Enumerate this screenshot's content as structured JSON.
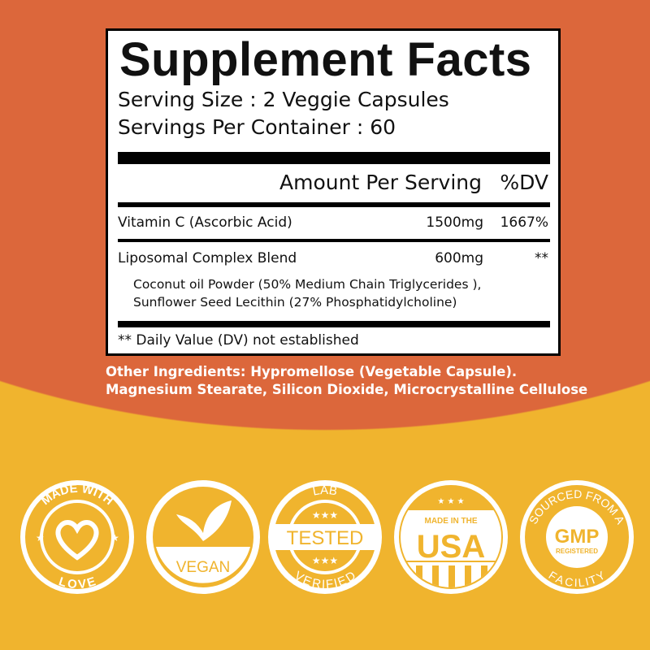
{
  "label": {
    "title": "Supplement Facts",
    "serving_size": "Serving Size : 2 Veggie Capsules",
    "servings_per_container": "Servings Per Container : 60",
    "header_amount": "Amount Per Serving",
    "header_dv": "%DV",
    "rows": [
      {
        "name": "Vitamin C (Ascorbic Acid)",
        "amount": "1500mg",
        "dv": "1667%"
      },
      {
        "name": "Liposomal Complex Blend",
        "amount": "600mg",
        "dv": "**"
      }
    ],
    "blend_line1": "Coconut oil Powder (50% Medium Chain Triglycerides ),",
    "blend_line2": "Sunflower Seed Lecithin (27% Phosphatidylcholine)",
    "footnote": "** Daily Value (DV) not established"
  },
  "other_ingredients": {
    "line1": "Other Ingredients: Hypromellose (Vegetable Capsule).",
    "line2": "Magnesium Stearate, Silicon Dioxide, Microcrystalline Cellulose"
  },
  "badges": [
    {
      "icon": "heart-icon",
      "top": "MADE WITH",
      "bottom": "LOVE"
    },
    {
      "icon": "leaf-icon",
      "center": "VEGAN"
    },
    {
      "icon": "star-icon",
      "top": "LAB",
      "center": "TESTED",
      "bottom": "VERIFIED"
    },
    {
      "icon": "usa-flag-icon",
      "top": "MADE IN THE",
      "center": "USA"
    },
    {
      "icon": "gmp-icon",
      "top": "SOURCED FROM A",
      "center": "GMP",
      "sub": "REGISTERED",
      "bottom": "FACILITY"
    }
  ],
  "colors": {
    "orange": "#dc673b",
    "yellow": "#f0b42e",
    "white": "#ffffff"
  }
}
